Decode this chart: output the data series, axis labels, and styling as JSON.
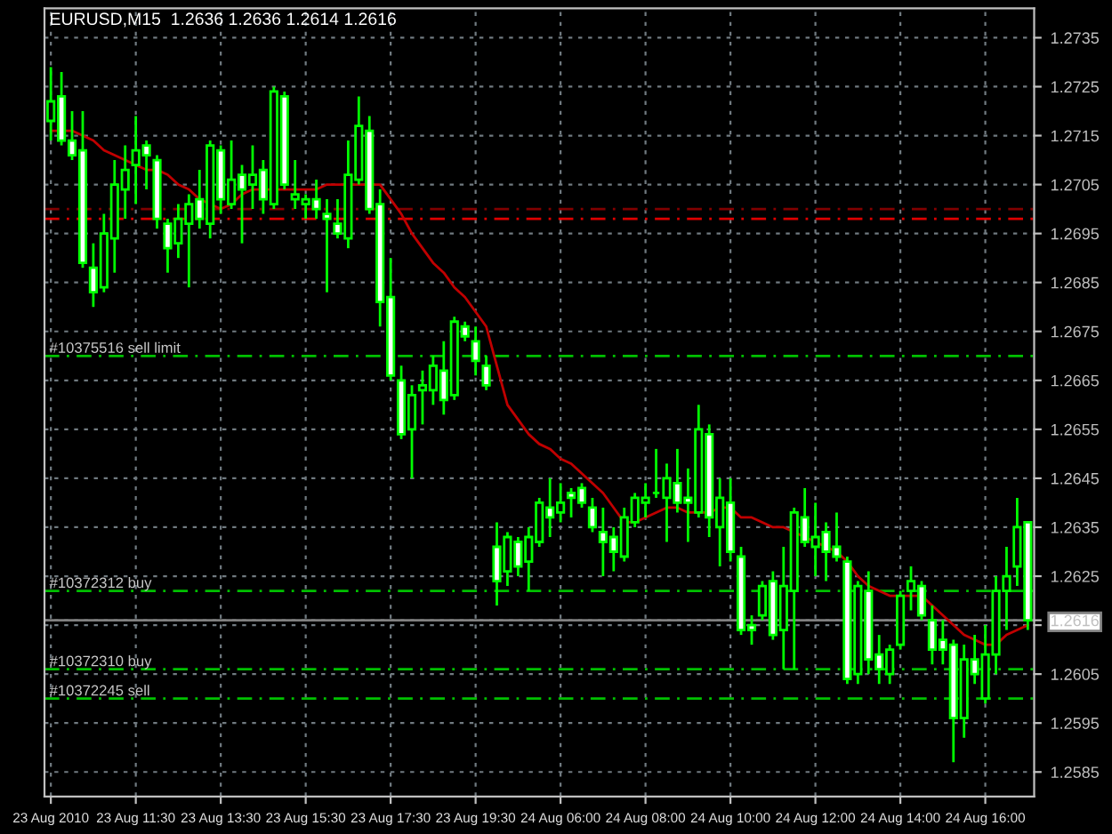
{
  "chart_data": {
    "type": "candlestick",
    "title": "EURUSD,M15  1.2636 1.2636 1.2614 1.2616",
    "categories": [
      "23 Aug 2010",
      null,
      null,
      null,
      null,
      null,
      null,
      null,
      "23 Aug 11:30",
      null,
      null,
      null,
      null,
      null,
      null,
      null,
      "23 Aug 13:30",
      null,
      null,
      null,
      null,
      null,
      null,
      null,
      "23 Aug 15:30",
      null,
      null,
      null,
      null,
      null,
      null,
      null,
      "23 Aug 17:30",
      null,
      null,
      null,
      null,
      null,
      null,
      null,
      "23 Aug 19:30",
      null,
      null,
      null,
      null,
      null,
      null,
      null,
      "24 Aug 06:00",
      null,
      null,
      null,
      null,
      null,
      null,
      null,
      "24 Aug 08:00",
      null,
      null,
      null,
      null,
      null,
      null,
      null,
      "24 Aug 10:00",
      null,
      null,
      null,
      null,
      null,
      null,
      null,
      "24 Aug 12:00",
      null,
      null,
      null,
      null,
      null,
      null,
      null,
      "24 Aug 14:00",
      null,
      null,
      null,
      null,
      null,
      null,
      null,
      "24 Aug 16:00",
      null,
      null,
      null,
      null
    ],
    "ohlc": [
      [
        1.2718,
        1.2729,
        1.2714,
        1.2722
      ],
      [
        1.2723,
        1.2728,
        1.2713,
        1.2714
      ],
      [
        1.2714,
        1.272,
        1.271,
        1.2711
      ],
      [
        1.2712,
        1.272,
        1.2688,
        1.2689
      ],
      [
        1.2688,
        1.2693,
        1.268,
        1.2683
      ],
      [
        1.2684,
        1.2699,
        1.2683,
        1.2695
      ],
      [
        1.2694,
        1.271,
        1.2687,
        1.2705
      ],
      [
        1.2704,
        1.2713,
        1.2698,
        1.2708
      ],
      [
        1.2709,
        1.2719,
        1.2701,
        1.2712
      ],
      [
        1.2713,
        1.2714,
        1.2704,
        1.2711
      ],
      [
        1.271,
        1.2711,
        1.2696,
        1.2698
      ],
      [
        1.2697,
        1.2698,
        1.2687,
        1.2692
      ],
      [
        1.2693,
        1.2701,
        1.269,
        1.2698
      ],
      [
        1.2697,
        1.2703,
        1.2684,
        1.2701
      ],
      [
        1.2702,
        1.2708,
        1.2696,
        1.2698
      ],
      [
        1.2697,
        1.2714,
        1.2694,
        1.2713
      ],
      [
        1.2712,
        1.2713,
        1.2699,
        1.2702
      ],
      [
        1.2701,
        1.2714,
        1.27,
        1.2706
      ],
      [
        1.2707,
        1.2709,
        1.2693,
        1.2704
      ],
      [
        1.2705,
        1.2713,
        1.27,
        1.2707
      ],
      [
        1.2708,
        1.271,
        1.2699,
        1.2702
      ],
      [
        1.2701,
        1.2725,
        1.27,
        1.2724
      ],
      [
        1.2723,
        1.2724,
        1.2704,
        1.2705
      ],
      [
        1.2702,
        1.271,
        1.27,
        1.2703
      ],
      [
        1.2701,
        1.2703,
        1.2698,
        1.2702
      ],
      [
        1.2702,
        1.2706,
        1.2698,
        1.27
      ],
      [
        1.2699,
        1.2702,
        1.2683,
        1.2698
      ],
      [
        1.2697,
        1.2702,
        1.2694,
        1.2695
      ],
      [
        1.2694,
        1.2714,
        1.2692,
        1.2707
      ],
      [
        1.2706,
        1.2723,
        1.2705,
        1.2717
      ],
      [
        1.2716,
        1.2719,
        1.2699,
        1.27
      ],
      [
        1.2701,
        1.2704,
        1.2676,
        1.2681
      ],
      [
        1.2682,
        1.269,
        1.2665,
        1.2666
      ],
      [
        1.2665,
        1.2668,
        1.2653,
        1.2654
      ],
      [
        1.2655,
        1.2664,
        1.2645,
        1.2662
      ],
      [
        1.2663,
        1.2667,
        1.2656,
        1.2664
      ],
      [
        1.2663,
        1.267,
        1.266,
        1.2668
      ],
      [
        1.2667,
        1.2673,
        1.2658,
        1.2661
      ],
      [
        1.2662,
        1.2678,
        1.2661,
        1.2677
      ],
      [
        1.2676,
        1.2677,
        1.2673,
        1.2674
      ],
      [
        1.2673,
        1.2676,
        1.2666,
        1.2669
      ],
      [
        1.2668,
        1.267,
        1.2663,
        1.2664
      ],
      [
        1.2631,
        1.2636,
        1.2619,
        1.2624
      ],
      [
        1.2626,
        1.2634,
        1.2623,
        1.2633
      ],
      [
        1.2632,
        1.2633,
        1.2625,
        1.2627
      ],
      [
        1.2628,
        1.2635,
        1.2622,
        1.2633
      ],
      [
        1.2632,
        1.2641,
        1.2631,
        1.264
      ],
      [
        1.2639,
        1.2645,
        1.2633,
        1.2637
      ],
      [
        1.2638,
        1.2644,
        1.2636,
        1.264
      ],
      [
        1.2642,
        1.2643,
        1.2637,
        1.2641
      ],
      [
        1.2643,
        1.2644,
        1.2639,
        1.264
      ],
      [
        1.2639,
        1.2641,
        1.2634,
        1.2635
      ],
      [
        1.2634,
        1.2639,
        1.2625,
        1.2632
      ],
      [
        1.2633,
        1.2635,
        1.2626,
        1.263
      ],
      [
        1.2629,
        1.2639,
        1.2628,
        1.2637
      ],
      [
        1.2636,
        1.2642,
        1.2635,
        1.2641
      ],
      [
        1.264,
        1.2644,
        1.2637,
        1.2641
      ],
      [
        1.2642,
        1.2651,
        1.2641,
        1.2642
      ],
      [
        1.2641,
        1.2648,
        1.2632,
        1.2645
      ],
      [
        1.2644,
        1.2651,
        1.2638,
        1.264
      ],
      [
        1.2641,
        1.2647,
        1.2632,
        1.264
      ],
      [
        1.2638,
        1.266,
        1.2637,
        1.2655
      ],
      [
        1.2654,
        1.2656,
        1.2633,
        1.2637
      ],
      [
        1.2635,
        1.2645,
        1.2627,
        1.2641
      ],
      [
        1.264,
        1.2645,
        1.2628,
        1.263
      ],
      [
        1.2629,
        1.2631,
        1.2613,
        1.2614
      ],
      [
        1.2615,
        1.2617,
        1.2611,
        1.2614
      ],
      [
        1.2617,
        1.2624,
        1.2616,
        1.2623
      ],
      [
        1.2624,
        1.2626,
        1.2612,
        1.2613
      ],
      [
        1.2614,
        1.2631,
        1.2606,
        1.2623
      ],
      [
        1.2622,
        1.2639,
        1.2606,
        1.2638
      ],
      [
        1.2637,
        1.2643,
        1.2631,
        1.2632
      ],
      [
        1.2631,
        1.264,
        1.2625,
        1.2633
      ],
      [
        1.2634,
        1.2636,
        1.2624,
        1.263
      ],
      [
        1.2631,
        1.2638,
        1.2628,
        1.2629
      ],
      [
        1.2628,
        1.2629,
        1.2603,
        1.2604
      ],
      [
        1.2605,
        1.2624,
        1.2603,
        1.2623
      ],
      [
        1.2622,
        1.2626,
        1.2605,
        1.2608
      ],
      [
        1.2609,
        1.2613,
        1.2603,
        1.2606
      ],
      [
        1.2605,
        1.2611,
        1.2603,
        1.261
      ],
      [
        1.2611,
        1.2622,
        1.261,
        1.2621
      ],
      [
        1.2622,
        1.2627,
        1.2618,
        1.2624
      ],
      [
        1.2623,
        1.2624,
        1.2616,
        1.2617
      ],
      [
        1.2616,
        1.2619,
        1.2607,
        1.261
      ],
      [
        1.2612,
        1.2616,
        1.2607,
        1.261
      ],
      [
        1.2611,
        1.2612,
        1.2587,
        1.2596
      ],
      [
        1.2596,
        1.2611,
        1.2592,
        1.2608
      ],
      [
        1.2608,
        1.2613,
        1.2603,
        1.2605
      ],
      [
        1.26,
        1.2615,
        1.2599,
        1.2609
      ],
      [
        1.2609,
        1.2625,
        1.2605,
        1.2622
      ],
      [
        1.2622,
        1.2631,
        1.2614,
        1.2625
      ],
      [
        1.2627,
        1.2641,
        1.2623,
        1.2635
      ],
      [
        1.2636,
        1.2636,
        1.2614,
        1.2616
      ]
    ],
    "series": [
      {
        "type": "line",
        "color": "#c00000",
        "values": [
          1.2716,
          1.2716,
          1.2716,
          1.2715,
          1.2714,
          1.2712,
          1.2711,
          1.271,
          1.2709,
          1.2708,
          1.2708,
          1.2707,
          1.2705,
          1.2704,
          1.2702,
          1.2701,
          1.27,
          1.2701,
          1.2703,
          1.2704,
          1.2704,
          1.2704,
          1.2704,
          1.2704,
          1.2704,
          1.2704,
          1.2705,
          1.2705,
          1.2705,
          1.2705,
          1.2705,
          1.2705,
          1.2702,
          1.2699,
          1.2695,
          1.2692,
          1.2689,
          1.2687,
          1.2684,
          1.2682,
          1.2679,
          1.2676,
          1.2668,
          1.266,
          1.2657,
          1.2654,
          1.2652,
          1.2651,
          1.2649,
          1.2648,
          1.2646,
          1.2644,
          1.2642,
          1.2639,
          1.2636,
          1.2636,
          1.2637,
          1.2638,
          1.2639,
          1.2639,
          1.2638,
          1.2638,
          1.2638,
          1.2639,
          1.2639,
          1.2637,
          1.2637,
          1.2636,
          1.2635,
          1.2635,
          1.2634,
          1.2633,
          1.2632,
          1.2631,
          1.263,
          1.2628,
          1.2625,
          1.2623,
          1.2622,
          1.2621,
          1.2621,
          1.2621,
          1.2621,
          1.2619,
          1.2617,
          1.2615,
          1.2613,
          1.2612,
          1.2611,
          1.2611,
          1.2613,
          1.2614,
          1.2615
        ]
      }
    ],
    "ylim": [
      1.258,
      1.2741
    ],
    "yticks": [
      1.2735,
      1.2725,
      1.2715,
      1.2705,
      1.2695,
      1.2685,
      1.2675,
      1.2665,
      1.2655,
      1.2645,
      1.2635,
      1.2625,
      {
        "value": 1.2615,
        "label": null
      },
      {
        "value": 1.2616,
        "label": "1.2616"
      },
      1.2605,
      1.2595,
      1.2585
    ],
    "ref_lines": [
      {
        "axis": "y",
        "value": 1.27,
        "color": "#800000",
        "line_style": "dashed"
      },
      {
        "axis": "y",
        "value": 1.2698,
        "color": "#e00000",
        "line_style": "dashed"
      },
      {
        "axis": "y",
        "value": 1.267,
        "label": "#10375516 sell limit",
        "color": "#00c000",
        "line_style": "dashed"
      },
      {
        "axis": "y",
        "value": 1.2622,
        "label": "#10372312 buy",
        "color": "#00c000",
        "line_style": "dashed"
      },
      {
        "axis": "y",
        "value": 1.2606,
        "label": "#10372310 buy",
        "color": "#00c000",
        "line_style": "dashed"
      },
      {
        "axis": "y",
        "value": 1.26,
        "label": "#10372245 sell",
        "color": "#00c000",
        "line_style": "dashed"
      },
      {
        "axis": "y",
        "value": 1.2616,
        "color": "#808080",
        "line_style": "solid"
      }
    ],
    "grid": true
  }
}
